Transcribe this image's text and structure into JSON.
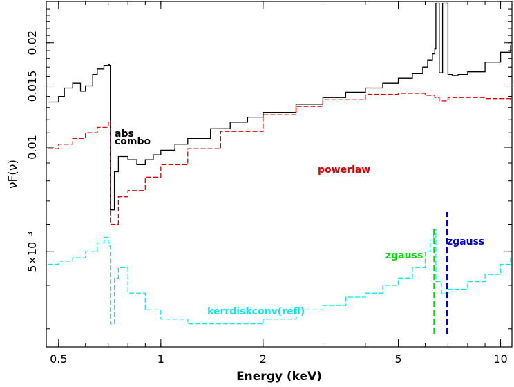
{
  "chart_data": {
    "type": "line",
    "xlabel": "Energy (keV)",
    "ylabel": "νF(ν)",
    "xscale": "log",
    "yscale": "log",
    "xlim": [
      0.46,
      10.8
    ],
    "ylim": [
      0.00266,
      0.0263
    ],
    "x_ticks": [
      {
        "value": 0.5,
        "label": "0.5"
      },
      {
        "value": 1,
        "label": "1"
      },
      {
        "value": 2,
        "label": "2"
      },
      {
        "value": 5,
        "label": "5"
      },
      {
        "value": 10,
        "label": "10"
      }
    ],
    "y_ticks": [
      {
        "value": 0.005,
        "label": "5×10⁻³"
      },
      {
        "value": 0.01,
        "label": "0.01"
      },
      {
        "value": 0.015,
        "label": "0.015"
      },
      {
        "value": 0.02,
        "label": "0.02"
      }
    ],
    "colors": {
      "combo": "#000000",
      "powerlaw": "#e00000",
      "refl": "#00eeee",
      "zgauss1": "#00dd00",
      "zgauss2": "#0000dd",
      "axes": "#000000"
    },
    "series": [
      {
        "name": "abs combo",
        "color": "#000000",
        "style": "solid",
        "x": [
          0.465,
          0.5,
          0.52,
          0.55,
          0.58,
          0.6,
          0.63,
          0.65,
          0.68,
          0.7,
          0.705,
          0.71,
          0.73,
          0.75,
          0.8,
          0.85,
          0.9,
          0.95,
          1.0,
          1.1,
          1.2,
          1.4,
          1.6,
          1.8,
          2.0,
          2.5,
          3.0,
          3.5,
          4.0,
          4.5,
          5.0,
          5.5,
          5.9,
          6.1,
          6.3,
          6.4,
          6.45,
          6.6,
          6.75,
          7.0,
          7.2,
          7.5,
          8.0,
          9.0,
          10.0,
          10.7
        ],
        "y": [
          0.0135,
          0.014,
          0.0148,
          0.0153,
          0.0145,
          0.015,
          0.0162,
          0.0168,
          0.0172,
          0.0173,
          0.0172,
          0.0066,
          0.0085,
          0.0094,
          0.0092,
          0.0089,
          0.0092,
          0.0095,
          0.0098,
          0.0102,
          0.0106,
          0.0113,
          0.0118,
          0.0122,
          0.0126,
          0.0133,
          0.0139,
          0.0144,
          0.0148,
          0.0153,
          0.0158,
          0.0163,
          0.017,
          0.0178,
          0.0186,
          0.0192,
          0.026,
          0.0164,
          0.026,
          0.0162,
          0.0161,
          0.0162,
          0.0165,
          0.0176,
          0.0188,
          0.0197
        ]
      },
      {
        "name": "powerlaw",
        "color": "#e00000",
        "style": "dashed",
        "x": [
          0.465,
          0.5,
          0.55,
          0.6,
          0.65,
          0.7,
          0.705,
          0.71,
          0.75,
          0.8,
          0.9,
          1.0,
          1.2,
          1.5,
          2.0,
          2.5,
          3.0,
          4.0,
          5.0,
          6.0,
          6.4,
          6.6,
          7.0,
          8.0,
          9.0,
          10.7
        ],
        "y": [
          0.0099,
          0.0102,
          0.0106,
          0.011,
          0.0114,
          0.0118,
          0.0119,
          0.006,
          0.0072,
          0.0075,
          0.0082,
          0.0089,
          0.0099,
          0.0111,
          0.0124,
          0.0131,
          0.0137,
          0.0142,
          0.0143,
          0.0141,
          0.0139,
          0.0136,
          0.0139,
          0.0139,
          0.0138,
          0.0137
        ]
      },
      {
        "name": "kerrdiskconv(refl)",
        "color": "#00eeee",
        "style": "dashed",
        "x": [
          0.465,
          0.5,
          0.55,
          0.6,
          0.65,
          0.68,
          0.7,
          0.705,
          0.71,
          0.73,
          0.75,
          0.8,
          0.9,
          1.0,
          1.2,
          1.5,
          2.0,
          2.5,
          3.0,
          3.5,
          4.0,
          4.5,
          5.0,
          5.5,
          6.0,
          6.2,
          6.35,
          6.45,
          6.7,
          7.0,
          8.0,
          9.0,
          10.0,
          10.7
        ],
        "y": [
          0.0046,
          0.0047,
          0.0048,
          0.005,
          0.0053,
          0.0055,
          0.0053,
          0.0052,
          0.0031,
          0.0042,
          0.0045,
          0.0038,
          0.0034,
          0.0032,
          0.0031,
          0.0031,
          0.0032,
          0.0034,
          0.0035,
          0.0037,
          0.0038,
          0.004,
          0.0042,
          0.0045,
          0.005,
          0.0054,
          0.0058,
          0.0041,
          0.0038,
          0.0039,
          0.0041,
          0.0043,
          0.0046,
          0.0048
        ]
      },
      {
        "name": "zgauss",
        "color": "#00dd00",
        "style": "dashed",
        "x": [
          6.38,
          6.38
        ],
        "y": [
          0.0029,
          0.0059
        ]
      },
      {
        "name": "zgauss",
        "color": "#0000dd",
        "style": "dashed",
        "x": [
          6.95,
          6.95
        ],
        "y": [
          0.0029,
          0.0065
        ]
      }
    ],
    "annotations": [
      {
        "text": "abs",
        "color": "#000000"
      },
      {
        "text": "combo",
        "color": "#000000"
      },
      {
        "text": "powerlaw",
        "color": "#e00000"
      },
      {
        "text": "kerrdiskconv(refl)",
        "color": "#00eeee"
      },
      {
        "text": "zgauss",
        "color": "#00dd00"
      },
      {
        "text": "zgauss",
        "color": "#0000dd"
      }
    ]
  }
}
